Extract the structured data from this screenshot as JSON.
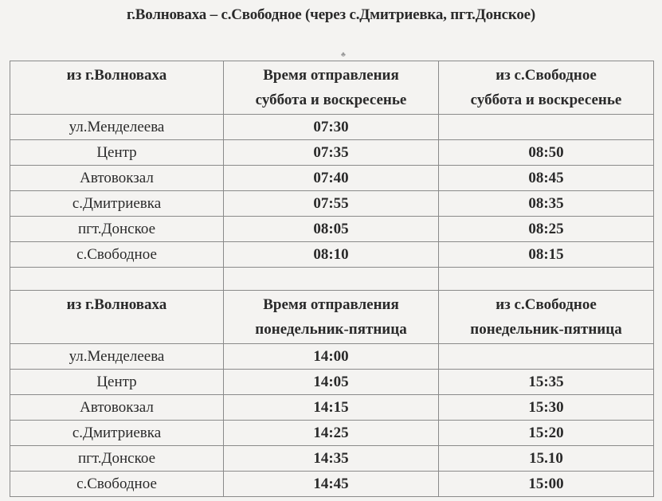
{
  "title": "г.Волноваха – с.Свободное (через с.Дмитриевка, пгт.Донское)",
  "sections": [
    {
      "headers": [
        "из г.Волноваха",
        "Время отправления\nсуббота и воскресенье",
        "из с.Свободное\nсуббота и воскресенье"
      ],
      "header_lines": [
        [
          "из г.Волноваха"
        ],
        [
          "Время отправления",
          "суббота и воскресенье"
        ],
        [
          "из с.Свободное",
          "суббота и воскресенье"
        ]
      ],
      "rows": [
        [
          "ул.Менделеева",
          "07:30",
          ""
        ],
        [
          "Центр",
          "07:35",
          "08:50"
        ],
        [
          "Автовокзал",
          "07:40",
          "08:45"
        ],
        [
          "с.Дмитриевка",
          "07:55",
          "08:35"
        ],
        [
          "пгт.Донское",
          "08:05",
          "08:25"
        ],
        [
          "с.Свободное",
          "08:10",
          "08:15"
        ]
      ]
    },
    {
      "header_lines": [
        [
          "из г.Волноваха"
        ],
        [
          "Время отправления",
          "понедельник-пятница"
        ],
        [
          "из с.Свободное",
          "понедельник-пятница"
        ]
      ],
      "rows": [
        [
          "ул.Менделеева",
          "14:00",
          ""
        ],
        [
          "Центр",
          "14:05",
          "15:35"
        ],
        [
          "Автовокзал",
          "14:15",
          "15:30"
        ],
        [
          "с.Дмитриевка",
          "14:25",
          "15:20"
        ],
        [
          "пгт.Донское",
          "14:35",
          "15.10"
        ],
        [
          "с.Свободное",
          "14:45",
          "15:00"
        ]
      ]
    }
  ]
}
